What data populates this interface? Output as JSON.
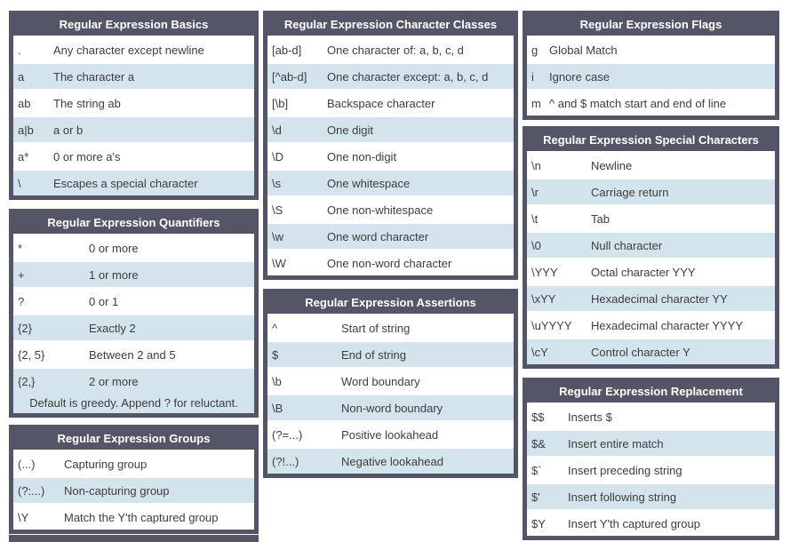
{
  "colors": {
    "header_bg": "#545668",
    "row_alt_bg": "#d3e4ec",
    "text": "#3d3d3d",
    "header_text": "#ffffff"
  },
  "tables": {
    "basics": {
      "title": "Regular Expression Basics",
      "rows": [
        [
          ".",
          "Any character except newline"
        ],
        [
          "a",
          "The character a"
        ],
        [
          "ab",
          "The string ab"
        ],
        [
          "a|b",
          "a or b"
        ],
        [
          "a*",
          "0 or more a's"
        ],
        [
          "\\",
          "Escapes a special character"
        ]
      ]
    },
    "quantifiers": {
      "title": "Regular Expression Quantifiers",
      "rows": [
        [
          "*",
          "0 or more"
        ],
        [
          "+",
          "1 or more"
        ],
        [
          "?",
          "0 or 1"
        ],
        [
          "{2}",
          "Exactly 2"
        ],
        [
          "{2, 5}",
          "Between 2 and 5"
        ],
        [
          "{2,}",
          "2 or more"
        ]
      ],
      "footer": "Default is greedy. Append ? for reluctant."
    },
    "groups": {
      "title": "Regular Expression Groups",
      "rows": [
        [
          "(...)",
          "Capturing group"
        ],
        [
          "(?:...)",
          "Non-capturing group"
        ],
        [
          "\\Y",
          "Match the Y'th captured group"
        ]
      ]
    },
    "character_classes": {
      "title": "Regular Expression Character Classes",
      "rows": [
        [
          "[ab-d]",
          "One character of: a, b, c, d"
        ],
        [
          "[^ab-d]",
          "One character except: a, b, c, d"
        ],
        [
          "[\\b]",
          "Backspace character"
        ],
        [
          "\\d",
          "One digit"
        ],
        [
          "\\D",
          "One non-digit"
        ],
        [
          "\\s",
          "One whitespace"
        ],
        [
          "\\S",
          "One non-whitespace"
        ],
        [
          "\\w",
          "One word character"
        ],
        [
          "\\W",
          "One non-word character"
        ]
      ]
    },
    "assertions": {
      "title": "Regular Expression Assertions",
      "rows": [
        [
          "^",
          "Start of string"
        ],
        [
          "$",
          "End of string"
        ],
        [
          "\\b",
          "Word boundary"
        ],
        [
          "\\B",
          "Non-word boundary"
        ],
        [
          "(?=...)",
          "Positive lookahead"
        ],
        [
          "(?!...)",
          "Negative lookahead"
        ]
      ]
    },
    "flags": {
      "title": "Regular Expression Flags",
      "rows": [
        [
          "g",
          "Global Match"
        ],
        [
          "i",
          "Ignore case"
        ],
        [
          "m",
          "^ and $ match start and end of line"
        ]
      ]
    },
    "special_characters": {
      "title": "Regular Expression Special Characters",
      "rows": [
        [
          "\\n",
          "Newline"
        ],
        [
          "\\r",
          "Carriage return"
        ],
        [
          "\\t",
          "Tab"
        ],
        [
          "\\0",
          "Null character"
        ],
        [
          "\\YYY",
          "Octal character YYY"
        ],
        [
          "\\xYY",
          "Hexadecimal character YY"
        ],
        [
          "\\uYYYY",
          "Hexadecimal character YYYY"
        ],
        [
          "\\cY",
          "Control character Y"
        ]
      ]
    },
    "replacement": {
      "title": "Regular Expression Replacement",
      "rows": [
        [
          "$$",
          "Inserts $"
        ],
        [
          "$&",
          "Insert entire match"
        ],
        [
          "$`",
          "Insert preceding string"
        ],
        [
          "$'",
          "Insert following string"
        ],
        [
          "$Y",
          "Insert Y'th captured group"
        ]
      ]
    }
  }
}
